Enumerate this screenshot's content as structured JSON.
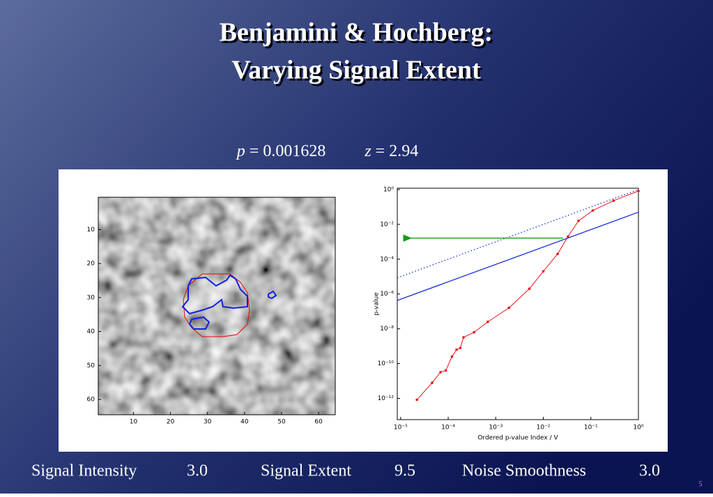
{
  "slide": {
    "title_lines": [
      "Benjamini & Hochberg:",
      "Varying Signal Extent"
    ],
    "stats": {
      "p_symbol": "p",
      "equals": "=",
      "p": 0.001628,
      "z_symbol": "z",
      "z": 2.94
    },
    "image_panel": {
      "xlim": [
        0.5,
        64.5
      ],
      "ylim": [
        0.5,
        64.5
      ],
      "xticks": [
        10,
        20,
        30,
        40,
        50,
        60
      ],
      "yticks": [
        10,
        20,
        30,
        40,
        50,
        60
      ]
    },
    "parameters": [
      {
        "name": "Signal Intensity",
        "value": "3.0"
      },
      {
        "name": "Signal Extent",
        "value": "9.5"
      },
      {
        "name": "Noise Smoothness",
        "value": "3.0"
      }
    ],
    "slide_number": "5"
  },
  "chart_data": {
    "type": "line",
    "log_x": true,
    "log_y": true,
    "x_label": "Ordered p-value Index / V",
    "y_label": "p-value",
    "xlim": [
      8.5e-06,
      1
    ],
    "ylim": [
      6e-14,
      1.2
    ],
    "xticks": [
      {
        "value": 1e-05,
        "label": "10⁻⁵"
      },
      {
        "value": 0.0001,
        "label": "10⁻⁴"
      },
      {
        "value": 0.001,
        "label": "10⁻³"
      },
      {
        "value": 0.01,
        "label": "10⁻²"
      },
      {
        "value": 0.1,
        "label": "10⁻¹"
      },
      {
        "value": 1,
        "label": "10⁰"
      }
    ],
    "yticks": [
      {
        "value": 1,
        "label": "10⁰"
      },
      {
        "value": 0.01,
        "label": "10⁻²"
      },
      {
        "value": 0.0001,
        "label": "10⁻⁴"
      },
      {
        "value": 1e-06,
        "label": "10⁻⁶"
      },
      {
        "value": 1e-08,
        "label": "10⁻⁸"
      },
      {
        "value": 1e-10,
        "label": "10⁻¹⁰"
      },
      {
        "value": 1e-12,
        "label": "10⁻¹²"
      }
    ],
    "series": [
      {
        "color": "#e8141c",
        "markers": true,
        "x": [
          2.2e-05,
          4.6e-05,
          6.9e-05,
          8.9e-05,
          0.00012,
          0.00015,
          0.00018,
          0.00021,
          0.00035,
          0.00068,
          0.0019,
          0.0051,
          0.01,
          0.02,
          0.033,
          0.055,
          0.11,
          0.3,
          1
        ],
        "values": [
          8.3e-13,
          7.9e-12,
          3.2e-11,
          4e-11,
          2.5e-10,
          6.3e-10,
          7.9e-10,
          3.2e-09,
          6.3e-09,
          2.5e-08,
          1.6e-07,
          2e-06,
          2e-05,
          0.0002,
          0.002,
          0.016,
          0.063,
          0.23,
          0.83
        ]
      },
      {
        "color": "#1a2fd6",
        "dash": false,
        "x": [
          8.5e-06,
          1
        ],
        "values": [
          4.25e-07,
          0.05
        ]
      },
      {
        "color": "#1a2fd6",
        "dash": true,
        "x": [
          8.5e-06,
          1
        ],
        "values": [
          8.5e-06,
          1
        ]
      }
    ],
    "threshold_color": "#1a9a1a"
  }
}
